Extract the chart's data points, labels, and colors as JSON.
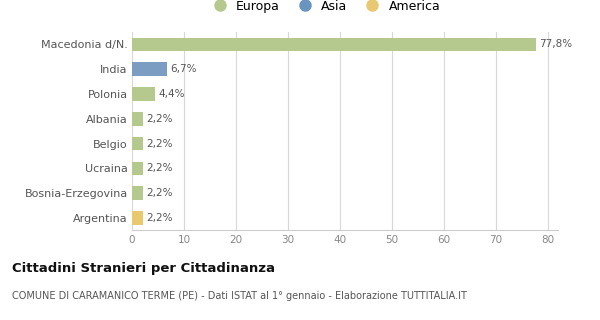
{
  "categories": [
    "Macedonia d/N.",
    "India",
    "Polonia",
    "Albania",
    "Belgio",
    "Ucraina",
    "Bosnia-Erzegovina",
    "Argentina"
  ],
  "values": [
    77.8,
    6.7,
    4.4,
    2.2,
    2.2,
    2.2,
    2.2,
    2.2
  ],
  "labels": [
    "77,8%",
    "6,7%",
    "4,4%",
    "2,2%",
    "2,2%",
    "2,2%",
    "2,2%",
    "2,2%"
  ],
  "colors": [
    "#b5c98e",
    "#7b9dc2",
    "#b5c98e",
    "#b5c98e",
    "#b5c98e",
    "#b5c98e",
    "#b5c98e",
    "#e8c96e"
  ],
  "legend_labels": [
    "Europa",
    "Asia",
    "America"
  ],
  "legend_colors": [
    "#b5c98e",
    "#6a94c0",
    "#e8c870"
  ],
  "title": "Cittadini Stranieri per Cittadinanza",
  "subtitle": "COMUNE DI CARAMANICO TERME (PE) - Dati ISTAT al 1° gennaio - Elaborazione TUTTITALIA.IT",
  "xlim": [
    0,
    82
  ],
  "xticks": [
    0,
    10,
    20,
    30,
    40,
    50,
    60,
    70,
    80
  ],
  "background_color": "#ffffff",
  "grid_color": "#d8d8d8"
}
